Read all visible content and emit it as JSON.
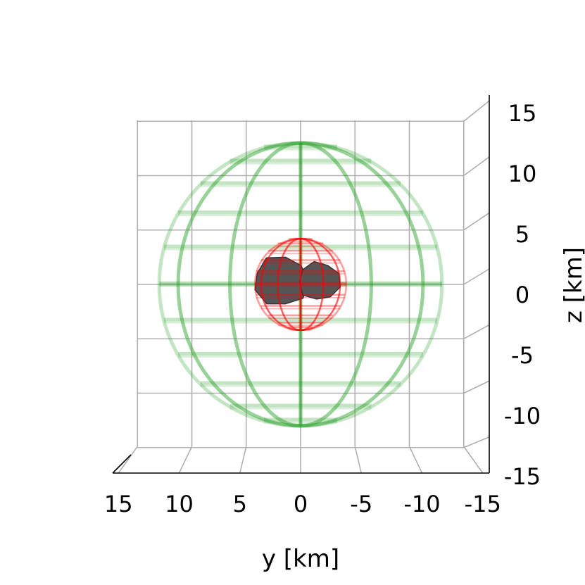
{
  "chart_data": {
    "type": "3d-wireframe",
    "xlabel": "y [km]",
    "ylabel": "z [km]",
    "xlim": [
      15,
      -15
    ],
    "ylim": [
      -15,
      15
    ],
    "x_ticks": [
      15,
      10,
      5,
      0,
      -5,
      -10,
      -15
    ],
    "x_tick_labels": [
      "15",
      "10",
      "5",
      "0",
      "-5",
      "-10",
      "-15"
    ],
    "y_ticks": [
      15,
      10,
      5,
      0,
      -5,
      -10,
      -15
    ],
    "y_tick_labels": [
      "15",
      "10",
      "5",
      "0",
      "-5",
      "-10",
      "-15"
    ],
    "grid": true,
    "series": [
      {
        "shape": "sphere",
        "center": [
          0,
          0,
          0
        ],
        "radius": 13,
        "color": "#2ca02c"
      },
      {
        "shape": "sphere",
        "center": [
          0,
          0,
          0
        ],
        "radius": 4.2,
        "color": "#ff0000"
      },
      {
        "shape": "body",
        "lobes": [
          {
            "center": [
              1.8,
              0.3
            ],
            "radius": 2.5
          },
          {
            "center": [
              -1.7,
              0.3
            ],
            "radius": 1.9
          }
        ],
        "color": "#555555"
      }
    ]
  }
}
